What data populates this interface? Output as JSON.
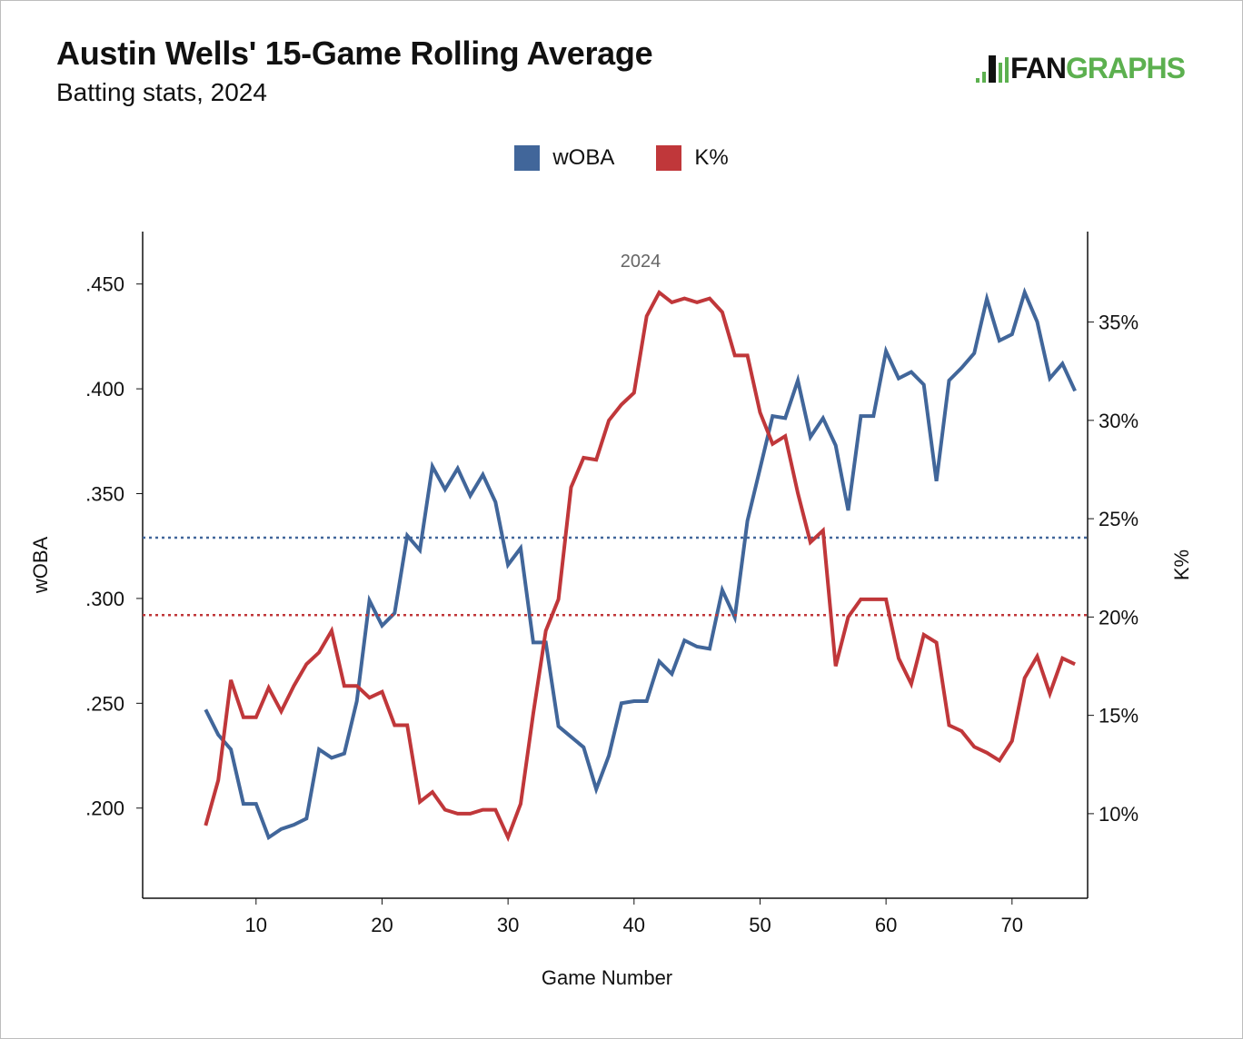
{
  "header": {
    "title": "Austin Wells' 15-Game Rolling Average",
    "subtitle": "Batting stats, 2024",
    "logo_text": "FANGRAPHS"
  },
  "colors": {
    "woba": "#41669a",
    "k_pct": "#c0373a",
    "logo_green": "#5cb04f"
  },
  "chart_data": {
    "type": "line",
    "title": "Austin Wells' 15-Game Rolling Average",
    "subtitle": "Batting stats, 2024",
    "annotation": "2024",
    "xlabel": "Game Number",
    "ylabel_left": "wOBA",
    "ylabel_right": "K%",
    "xlim": [
      1,
      76
    ],
    "ylim_left": [
      0.157,
      0.475
    ],
    "ylim_right": [
      5.7,
      39.6
    ],
    "x_ticks": [
      "10",
      "20",
      "30",
      "40",
      "50",
      "60",
      "70"
    ],
    "x_tick_values": [
      10,
      20,
      30,
      40,
      50,
      60,
      70
    ],
    "y_left_ticks": [
      ".200",
      ".250",
      ".300",
      ".350",
      ".400",
      ".450"
    ],
    "y_left_tick_values": [
      0.2,
      0.25,
      0.3,
      0.35,
      0.4,
      0.45
    ],
    "y_right_ticks": [
      "10%",
      "15%",
      "20%",
      "25%",
      "30%",
      "35%"
    ],
    "y_right_tick_values": [
      10,
      15,
      20,
      25,
      30,
      35
    ],
    "grid": false,
    "legend_position": "top-center",
    "x": [
      6,
      7,
      8,
      9,
      10,
      11,
      12,
      13,
      14,
      15,
      16,
      17,
      18,
      19,
      20,
      21,
      22,
      23,
      24,
      25,
      26,
      27,
      28,
      29,
      30,
      31,
      32,
      33,
      34,
      35,
      36,
      37,
      38,
      39,
      40,
      41,
      42,
      43,
      44,
      45,
      46,
      47,
      48,
      49,
      50,
      51,
      52,
      53,
      54,
      55,
      56,
      57,
      58,
      59,
      60,
      61,
      62,
      63,
      64,
      65,
      66,
      67,
      68,
      69,
      70,
      71,
      72,
      73,
      74,
      75
    ],
    "series": [
      {
        "name": "wOBA",
        "axis": "left",
        "values": [
          0.247,
          0.235,
          0.228,
          0.202,
          0.202,
          0.186,
          0.19,
          0.192,
          0.195,
          0.228,
          0.224,
          0.226,
          0.251,
          0.299,
          0.287,
          0.293,
          0.33,
          0.323,
          0.363,
          0.352,
          0.362,
          0.349,
          0.359,
          0.346,
          0.316,
          0.324,
          0.279,
          0.279,
          0.239,
          0.234,
          0.229,
          0.209,
          0.225,
          0.25,
          0.251,
          0.251,
          0.27,
          0.264,
          0.28,
          0.277,
          0.276,
          0.304,
          0.291,
          0.337,
          0.362,
          0.387,
          0.386,
          0.404,
          0.377,
          0.386,
          0.373,
          0.342,
          0.387,
          0.387,
          0.418,
          0.405,
          0.408,
          0.402,
          0.356,
          0.404,
          0.41,
          0.417,
          0.443,
          0.423,
          0.426,
          0.446,
          0.432,
          0.405,
          0.412,
          0.399
        ],
        "reference": 0.329
      },
      {
        "name": "K%",
        "axis": "right",
        "values": [
          9.4,
          11.7,
          16.8,
          14.9,
          14.9,
          16.4,
          15.2,
          16.5,
          17.6,
          18.2,
          19.3,
          16.5,
          16.5,
          15.9,
          16.2,
          14.5,
          14.5,
          10.6,
          11.1,
          10.2,
          10.0,
          10.0,
          10.2,
          10.2,
          8.8,
          10.5,
          15.1,
          19.3,
          20.9,
          26.6,
          28.1,
          28.0,
          30.0,
          30.8,
          31.4,
          35.3,
          36.5,
          36.0,
          36.2,
          36.0,
          36.2,
          35.5,
          33.3,
          33.3,
          30.4,
          28.8,
          29.2,
          26.3,
          23.8,
          24.4,
          17.5,
          20.0,
          20.9,
          20.9,
          20.9,
          17.9,
          16.6,
          19.1,
          18.7,
          14.5,
          14.2,
          13.4,
          13.1,
          12.7,
          13.7,
          16.9,
          18.0,
          16.1,
          17.9,
          17.6
        ],
        "reference": 20.1
      }
    ]
  }
}
